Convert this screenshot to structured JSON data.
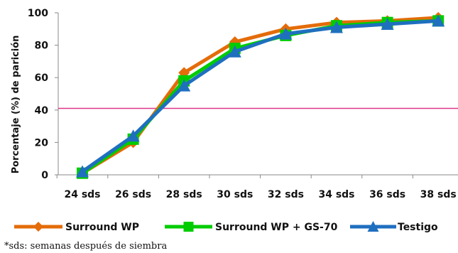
{
  "chart_data": {
    "type": "line",
    "title": "",
    "xlabel": "",
    "ylabel": "Porcentaje (%) de parición",
    "categories": [
      "24 sds",
      "26 sds",
      "28 sds",
      "30 sds",
      "32 sds",
      "34 sds",
      "36 sds",
      "38 sds"
    ],
    "ylim": [
      0,
      100
    ],
    "yticks": [
      0,
      20,
      40,
      60,
      80,
      100
    ],
    "series": [
      {
        "name": "Surround WP",
        "color": "#E46C0A",
        "marker": "diamond",
        "values": [
          1,
          20,
          63,
          82,
          90,
          94,
          95,
          97
        ]
      },
      {
        "name": "Surround WP + GS-70",
        "color": "#00CC00",
        "marker": "square",
        "values": [
          1,
          22,
          58,
          78,
          86,
          92,
          94,
          95
        ]
      },
      {
        "name": "Testigo",
        "color": "#1F6FBF",
        "marker": "triangle",
        "values": [
          2,
          24,
          55,
          76,
          87,
          91,
          93,
          95
        ]
      }
    ],
    "reference_line": {
      "value": 41,
      "color": "#E0368C"
    },
    "grid": false,
    "legend_position": "bottom"
  },
  "footnote": "*sds: semanas después de siembra"
}
